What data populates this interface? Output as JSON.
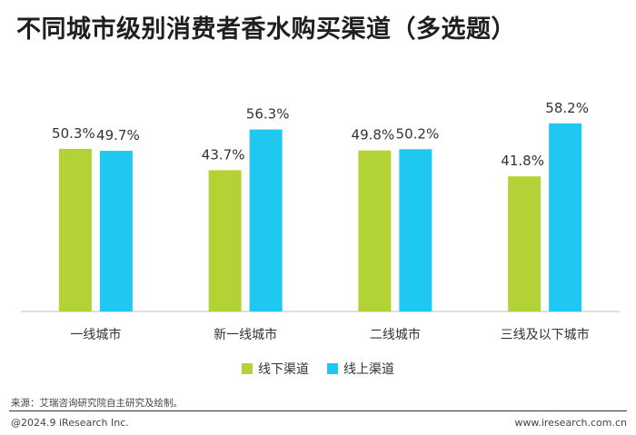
{
  "title": "不同城市级别消费者香水购买渠道（多选题）",
  "colors": {
    "offline": "#b2d235",
    "online": "#1ec8f0",
    "axis": "#bfbfbf"
  },
  "chart_data": {
    "type": "bar",
    "title": "不同城市级别消费者香水购买渠道（多选题）",
    "categories": [
      "一线城市",
      "新一线城市",
      "二线城市",
      "三线及以下城市"
    ],
    "series": [
      {
        "name": "线下渠道",
        "values": [
          50.3,
          43.7,
          49.8,
          41.8
        ]
      },
      {
        "name": "线上渠道",
        "values": [
          49.7,
          56.3,
          50.2,
          58.2
        ]
      }
    ],
    "unit": "%",
    "ylim": [
      0,
      100
    ],
    "grid": false,
    "legend_position": "bottom-center"
  },
  "footer": {
    "source": "来源：艾瑞咨询研究院自主研究及绘制。",
    "copyright": "@2024.9 iResearch Inc.",
    "website": "www.iresearch.com.cn"
  }
}
